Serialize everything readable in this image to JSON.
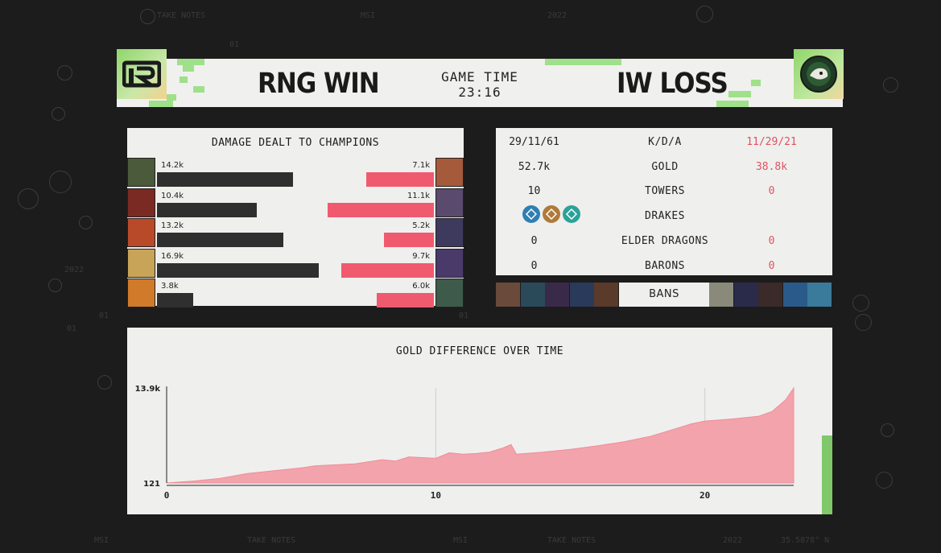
{
  "background_text": {
    "take_notes": "TAKE NOTES",
    "msi": "MSI",
    "year": "2022",
    "one": "01",
    "coord": "35.5878° N"
  },
  "header": {
    "left_team_logo": "RNG",
    "right_team_logo": "WILDCATS",
    "left_result": "RNG WIN",
    "right_result": "IW LOSS",
    "game_time_label": "GAME TIME",
    "game_time_value": "23:16"
  },
  "damage": {
    "title": "DAMAGE DEALT TO CHAMPIONS",
    "left": [
      {
        "value": "14.2k",
        "num": 14.2,
        "color": "#4b5a3a"
      },
      {
        "value": "10.4k",
        "num": 10.4,
        "color": "#7a2a22"
      },
      {
        "value": "13.2k",
        "num": 13.2,
        "color": "#b84a2a"
      },
      {
        "value": "16.9k",
        "num": 16.9,
        "color": "#c8a458"
      },
      {
        "value": "3.8k",
        "num": 3.8,
        "color": "#d07a2a"
      }
    ],
    "right": [
      {
        "value": "7.1k",
        "num": 7.1,
        "color": "#a65a3c"
      },
      {
        "value": "11.1k",
        "num": 11.1,
        "color": "#5a4a6e"
      },
      {
        "value": "5.2k",
        "num": 5.2,
        "color": "#3e3a5e"
      },
      {
        "value": "9.7k",
        "num": 9.7,
        "color": "#4a3a6a"
      },
      {
        "value": "6.0k",
        "num": 6.0,
        "color": "#3e5a4a"
      }
    ]
  },
  "stats": {
    "rows": [
      {
        "left": "29/11/61",
        "label": "K/D/A",
        "right": "11/29/21"
      },
      {
        "left": "52.7k",
        "label": "GOLD",
        "right": "38.8k"
      },
      {
        "left": "10",
        "label": "TOWERS",
        "right": "0"
      },
      {
        "left": "",
        "label": "DRAKES",
        "right": ""
      },
      {
        "left": "0",
        "label": "ELDER DRAGONS",
        "right": "0"
      },
      {
        "left": "0",
        "label": "BARONS",
        "right": "0"
      }
    ],
    "drake_icons": [
      {
        "name": "hextech-drake-icon",
        "color": "#2f7fb2"
      },
      {
        "name": "mountain-drake-icon",
        "color": "#b07a3a"
      },
      {
        "name": "ocean-drake-icon",
        "color": "#2aa39a"
      }
    ]
  },
  "bans": {
    "label": "BANS",
    "left": [
      "#6a4a3a",
      "#2a4a5a",
      "#3a2a4a",
      "#2a3a5a",
      "#5a3a2a"
    ],
    "right": [
      "#8a8a7a",
      "#2a2a4a",
      "#3a2a2a",
      "#2a5a8a",
      "#3a7a9a"
    ]
  },
  "gold_chart": {
    "title": "GOLD DIFFERENCE OVER TIME",
    "y_max_label": "13.9k",
    "y_min_label": "121",
    "x_ticks": [
      "0",
      "10",
      "20"
    ],
    "fill_color": "#f3a3ab"
  },
  "chart_data": {
    "type": "area",
    "title": "GOLD DIFFERENCE OVER TIME",
    "xlabel": "",
    "ylabel": "",
    "xlim": [
      0,
      23.3
    ],
    "ylim": [
      121,
      13900
    ],
    "x": [
      0,
      1,
      2,
      3,
      4,
      5,
      5.5,
      6,
      7,
      8,
      8.5,
      9,
      10,
      10.5,
      11,
      11.5,
      12,
      12.5,
      12.8,
      13,
      14,
      15,
      16,
      17,
      18,
      19,
      19.5,
      20,
      21,
      22,
      22.5,
      23,
      23.3
    ],
    "y": [
      121,
      400,
      800,
      1500,
      1900,
      2300,
      2600,
      2700,
      2900,
      3500,
      3300,
      3900,
      3700,
      4500,
      4300,
      4400,
      4600,
      5200,
      5700,
      4300,
      4600,
      5000,
      5500,
      6100,
      6900,
      8100,
      8700,
      9100,
      9400,
      9800,
      10500,
      12200,
      13900
    ]
  }
}
